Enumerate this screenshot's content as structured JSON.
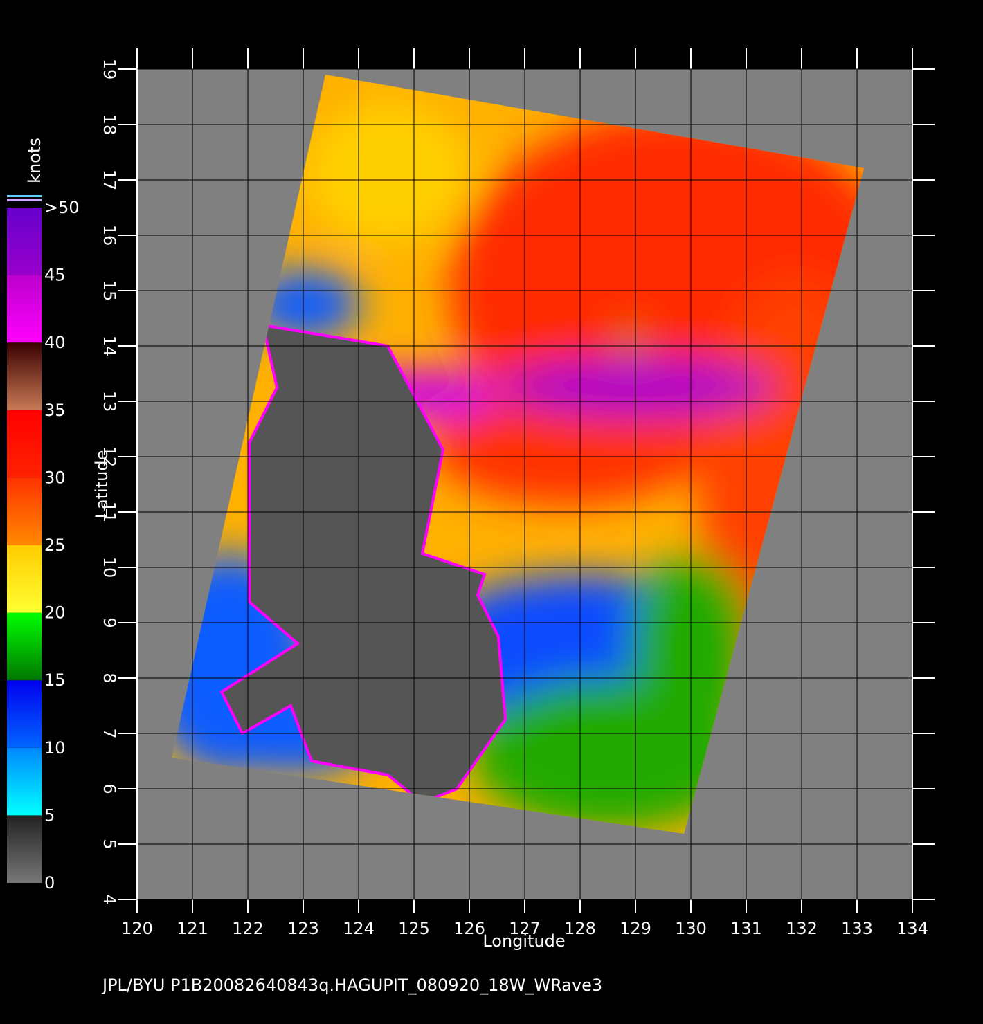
{
  "map": {
    "x_label": "Longitude",
    "y_label": "Latitude",
    "xlim": [
      120,
      134
    ],
    "ylim": [
      4,
      19
    ],
    "xticks": [
      120,
      121,
      122,
      123,
      124,
      125,
      126,
      127,
      128,
      129,
      130,
      131,
      132,
      133,
      134
    ],
    "yticks": [
      4,
      5,
      6,
      7,
      8,
      9,
      10,
      11,
      12,
      13,
      14,
      15,
      16,
      17,
      18,
      19
    ],
    "grid": true,
    "colorbar": {
      "label": "knots",
      "lim": [
        0,
        50
      ],
      "ticks": [
        0,
        5,
        10,
        15,
        20,
        25,
        30,
        35,
        40,
        45,
        {
          "value": 50,
          "label": ">50"
        }
      ],
      "colors": [
        [
          "#777777",
          "#222222"
        ],
        [
          "#00ffff",
          "#0088ff"
        ],
        [
          "#0066ff",
          "#0000ee"
        ],
        [
          "#007700",
          "#00ff00"
        ],
        [
          "#ffff33",
          "#ffcc00"
        ],
        [
          "#ff8800",
          "#ff3300"
        ],
        [
          "#ff2200",
          "#ff0000"
        ],
        [
          "#c87a55",
          "#3a0000"
        ],
        [
          "#ff00ff",
          "#bb00cc"
        ],
        [
          "#9900cc",
          "#6600cc"
        ]
      ]
    },
    "footer": "JPL/BYU  P1B20082640843q.HAGUPIT_080920_18W_WRave3"
  }
}
